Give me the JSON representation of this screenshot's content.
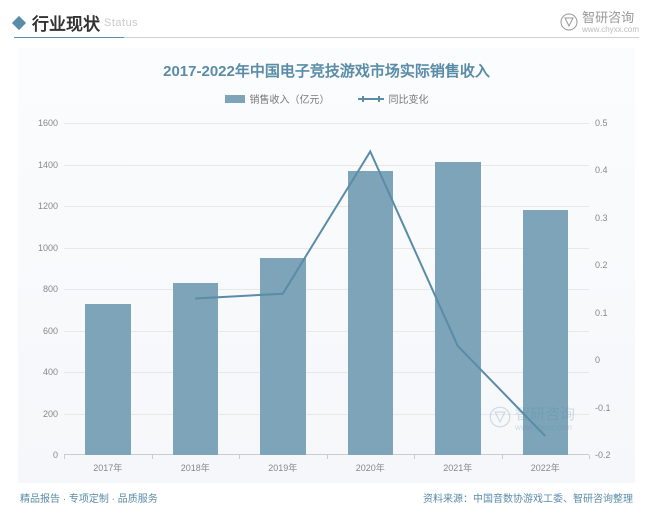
{
  "header": {
    "title_cn": "行业现状",
    "title_en": "Status",
    "brand_name": "智研咨询",
    "brand_url": "www.chyxx.com"
  },
  "chart": {
    "type": "bar+line",
    "title": "2017-2022年中国电子竞技游戏市场实际销售收入",
    "background_gradient": [
      "#fbfcfd",
      "#f5f7fa"
    ],
    "title_color": "#5a8ca8",
    "title_fontsize": 15,
    "legend": {
      "bar_label": "销售收入（亿元）",
      "line_label": "同比变化",
      "bar_color": "#7da4b8",
      "line_color": "#5a8ca8",
      "font_color": "#777777",
      "fontsize": 10
    },
    "categories": [
      "2017年",
      "2018年",
      "2019年",
      "2020年",
      "2021年",
      "2022年"
    ],
    "bar_values": [
      730,
      830,
      950,
      1370,
      1410,
      1180
    ],
    "line_values": [
      null,
      0.13,
      0.14,
      0.44,
      0.03,
      -0.16
    ],
    "bar_color": "#7da4b8",
    "line_color": "#5a8ca8",
    "line_width": 2,
    "bar_width_ratio": 0.52,
    "y_left": {
      "min": 0,
      "max": 1600,
      "step": 200,
      "labels": [
        "0",
        "200",
        "400",
        "600",
        "800",
        "1000",
        "1200",
        "1400",
        "1600"
      ]
    },
    "y_right": {
      "min": -0.2,
      "max": 0.5,
      "step": 0.1,
      "labels": [
        "-0.2",
        "-0.1",
        "0",
        "0.1",
        "0.2",
        "0.3",
        "0.4",
        "0.5"
      ]
    },
    "grid_color": "#e8e8e8",
    "axis_color": "#cccccc",
    "label_color": "#888888",
    "label_fontsize": 9
  },
  "footer": {
    "left": "精品报告 · 专项定制 · 品质服务",
    "right_prefix": "资料来源：",
    "right_source": "中国音数协游戏工委、智研咨询整理",
    "color": "#5a8ca8"
  },
  "watermark": {
    "text": "智研咨询",
    "sub": "www.chyxx.com",
    "opacity": 0.25
  }
}
